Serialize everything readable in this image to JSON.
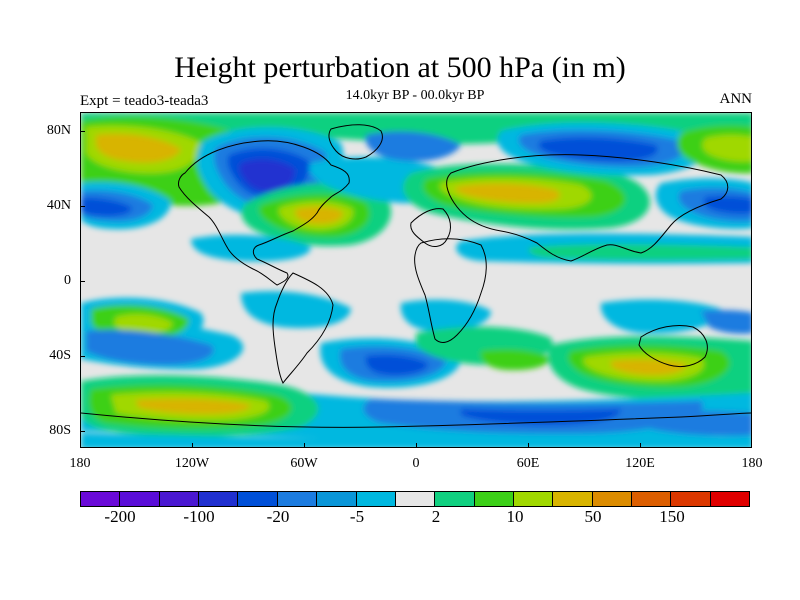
{
  "title": "Height perturbation at 500 hPa (in m)",
  "subtitle": "14.0kyr BP - 00.0kyr BP",
  "left_string": "Expt = teado3-teada3",
  "right_string": "ANN",
  "map": {
    "lat_labels": [
      "80N",
      "40N",
      "0",
      "40S",
      "80S"
    ],
    "lon_labels": [
      "180",
      "120W",
      "60W",
      "0",
      "60E",
      "120E",
      "180"
    ],
    "background_color": "#e6e6e6"
  },
  "colorbar": {
    "colors": [
      "#6a0ad8",
      "#5a0dd8",
      "#4a18d2",
      "#2030d0",
      "#0050d8",
      "#1c7ce0",
      "#0a96d8",
      "#00b8e0",
      "#e6e6e6",
      "#10d080",
      "#3cd018",
      "#a0d800",
      "#d8b400",
      "#dc8c00",
      "#dc5e00",
      "#dc3800",
      "#e00000"
    ],
    "labels": [
      "-200",
      "-100",
      "-20",
      "-5",
      "2",
      "10",
      "50",
      "150"
    ]
  }
}
